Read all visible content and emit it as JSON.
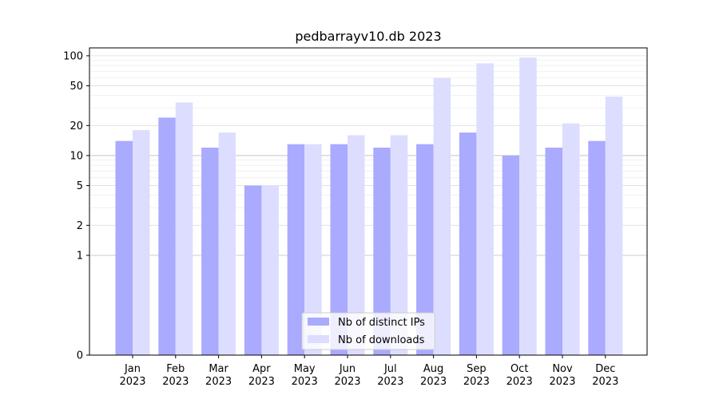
{
  "chart_data": {
    "type": "bar",
    "title": "pedbarrayv10.db 2023",
    "xlabel": "",
    "ylabel": "",
    "y_scale": "symlog",
    "ylim": [
      0,
      120
    ],
    "y_ticks": [
      0,
      1,
      2,
      5,
      10,
      20,
      50,
      100
    ],
    "y_tick_labels": [
      "0",
      "1",
      "2",
      "5",
      "10",
      "20",
      "50",
      "100"
    ],
    "grid": true,
    "legend_position": "bottom-center",
    "categories": [
      {
        "month": "Jan",
        "year": "2023"
      },
      {
        "month": "Feb",
        "year": "2023"
      },
      {
        "month": "Mar",
        "year": "2023"
      },
      {
        "month": "Apr",
        "year": "2023"
      },
      {
        "month": "May",
        "year": "2023"
      },
      {
        "month": "Jun",
        "year": "2023"
      },
      {
        "month": "Jul",
        "year": "2023"
      },
      {
        "month": "Aug",
        "year": "2023"
      },
      {
        "month": "Sep",
        "year": "2023"
      },
      {
        "month": "Oct",
        "year": "2023"
      },
      {
        "month": "Nov",
        "year": "2023"
      },
      {
        "month": "Dec",
        "year": "2023"
      }
    ],
    "series": [
      {
        "name": "Nb of distinct IPs",
        "color": "#aaaaff",
        "values": [
          14,
          24,
          12,
          5,
          13,
          13,
          12,
          13,
          17,
          10,
          12,
          14
        ]
      },
      {
        "name": "Nb of downloads",
        "color": "#ddddff",
        "values": [
          18,
          34,
          17,
          5,
          13,
          16,
          16,
          60,
          84,
          96,
          21,
          39
        ]
      }
    ]
  }
}
